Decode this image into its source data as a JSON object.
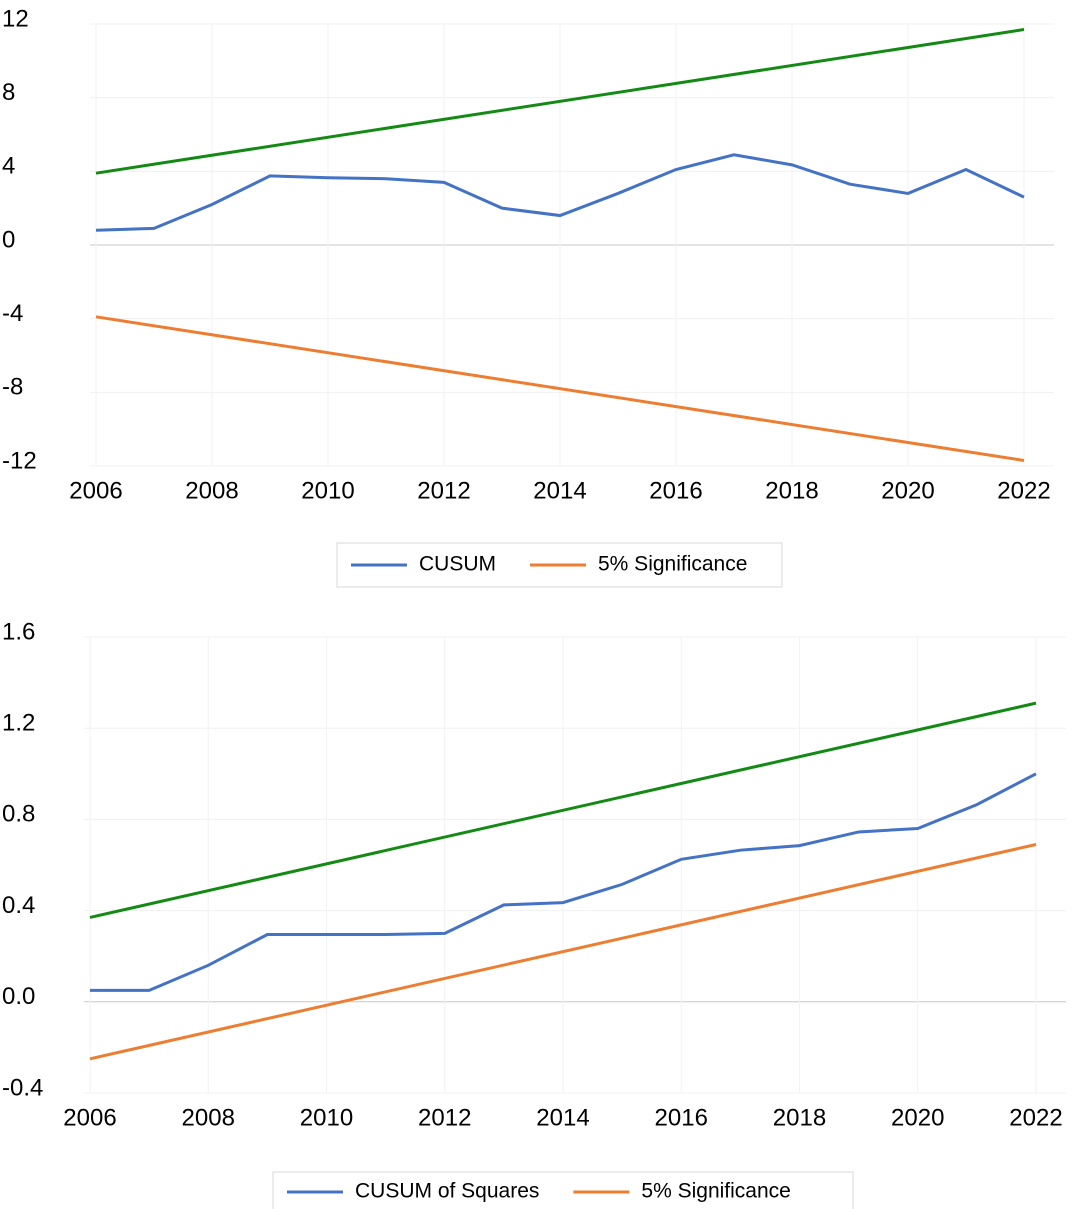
{
  "chart_data": [
    {
      "type": "line",
      "x": [
        2006,
        2007,
        2008,
        2009,
        2010,
        2011,
        2012,
        2013,
        2014,
        2015,
        2016,
        2017,
        2018,
        2019,
        2020,
        2021,
        2022
      ],
      "xlim": [
        2006,
        2022
      ],
      "xticks": [
        2006,
        2008,
        2010,
        2012,
        2014,
        2016,
        2018,
        2020,
        2022
      ],
      "ylim": [
        -12,
        12
      ],
      "yticks": [
        -12,
        -8,
        -4,
        0,
        4,
        8,
        12
      ],
      "grid": true,
      "series": [
        {
          "name": "CUSUM",
          "color": "#4472c4",
          "values": [
            0.8,
            0.9,
            2.2,
            3.75,
            3.65,
            3.6,
            3.4,
            2.0,
            1.6,
            2.8,
            4.1,
            4.9,
            4.35,
            3.3,
            2.8,
            4.1,
            2.6
          ]
        },
        {
          "name": "5% Significance",
          "color": "#ed7d31",
          "x": [
            2006,
            2022
          ],
          "values": [
            -3.9,
            -11.7
          ]
        },
        {
          "color": "#138a13",
          "x": [
            2006,
            2022
          ],
          "values": [
            3.9,
            11.7
          ]
        }
      ]
    },
    {
      "type": "line",
      "x": [
        2006,
        2007,
        2008,
        2009,
        2010,
        2011,
        2012,
        2013,
        2014,
        2015,
        2016,
        2017,
        2018,
        2019,
        2020,
        2021,
        2022
      ],
      "xlim": [
        2006,
        2022
      ],
      "xticks": [
        2006,
        2008,
        2010,
        2012,
        2014,
        2016,
        2018,
        2020,
        2022
      ],
      "ylim": [
        -0.4,
        1.6
      ],
      "yticks": [
        -0.4,
        {
          "value": 0,
          "label": "0.0"
        },
        0.4,
        0.8,
        1.2,
        1.6
      ],
      "grid": true,
      "series": [
        {
          "name": "CUSUM of Squares",
          "color": "#4472c4",
          "values": [
            0.05,
            0.05,
            0.16,
            0.295,
            0.295,
            0.295,
            0.3,
            0.425,
            0.435,
            0.515,
            0.625,
            0.665,
            0.685,
            0.745,
            0.76,
            0.865,
            1.0
          ]
        },
        {
          "name": "5% Significance",
          "color": "#ed7d31",
          "x": [
            2006,
            2022
          ],
          "values": [
            -0.25,
            0.69
          ]
        },
        {
          "color": "#138a13",
          "x": [
            2006,
            2022
          ],
          "values": [
            0.37,
            1.31
          ]
        }
      ]
    }
  ]
}
